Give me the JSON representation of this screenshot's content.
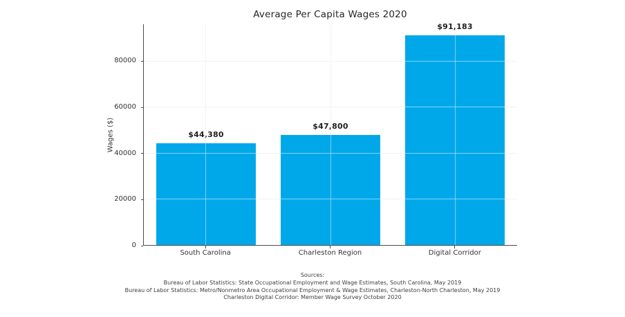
{
  "chart_data": {
    "type": "bar",
    "title": "Average Per Capita Wages 2020",
    "xlabel": "",
    "ylabel": "Wages ($)",
    "categories": [
      "South Carolina",
      "Charleston Region",
      "Digital Corridor"
    ],
    "values": [
      44380,
      47800,
      91183
    ],
    "value_labels": [
      "$44,380",
      "$47,800",
      "$91,183"
    ],
    "ylim": [
      0,
      96000
    ],
    "yticks": [
      0,
      20000,
      40000,
      60000,
      80000
    ],
    "ytick_labels": [
      "0",
      "20000",
      "40000",
      "60000",
      "80000"
    ],
    "grid": true,
    "legend": "none",
    "bar_color": "#00A8EA"
  },
  "colors": {
    "bar": "#00A8EA",
    "spine": "#4a4a4a",
    "grid": "#e4e4e4",
    "title_text": "#262626",
    "tick_text": "#333333",
    "footer_text": "#3d3d3d"
  },
  "footer": {
    "lines": [
      "Sources:",
      "Bureau of Labor Statistics: State Occupational Employment and Wage Estimates, South Carolina, May 2019",
      "Bureau of Labor Statistics: Metro/Nonmetro Area Occupational Employment & Wage Estimates, Charleston-North Charleston, May 2019",
      "Charleston Digital Corridor: Member Wage Survey October 2020"
    ]
  }
}
